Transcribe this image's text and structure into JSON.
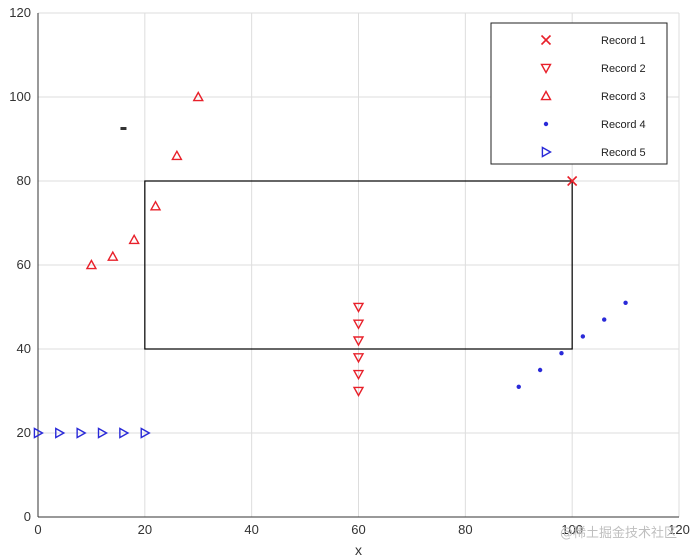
{
  "chart_data": {
    "type": "scatter",
    "title": "",
    "xlabel": "x",
    "ylabel": "",
    "xlim": [
      0,
      120
    ],
    "ylim": [
      0,
      120
    ],
    "xticks": [
      0,
      20,
      40,
      60,
      80,
      100,
      120
    ],
    "yticks": [
      0,
      20,
      40,
      60,
      80,
      100,
      120
    ],
    "grid": true,
    "legend_position": "top-right",
    "series": [
      {
        "name": "Record 1",
        "marker": "x",
        "color": "#e8202a",
        "x": [
          100
        ],
        "y": [
          80
        ]
      },
      {
        "name": "Record 2",
        "marker": "triangle-down",
        "color": "#e8202a",
        "x": [
          60,
          60,
          60,
          60,
          60,
          60
        ],
        "y": [
          30,
          34,
          38,
          42,
          46,
          50
        ]
      },
      {
        "name": "Record 3",
        "marker": "triangle-up",
        "color": "#e8202a",
        "x": [
          10,
          14,
          18,
          22,
          26,
          30
        ],
        "y": [
          60,
          62,
          66,
          74,
          86,
          100
        ]
      },
      {
        "name": "Record 4",
        "marker": "dot",
        "color": "#2a2ad8",
        "x": [
          90,
          94,
          98,
          102,
          106,
          110
        ],
        "y": [
          31,
          35,
          39,
          43,
          47,
          51
        ]
      },
      {
        "name": "Record 5",
        "marker": "triangle-right",
        "color": "#2a2ad8",
        "x": [
          0,
          4,
          8,
          12,
          16,
          20
        ],
        "y": [
          20,
          20,
          20,
          20,
          20,
          20
        ]
      }
    ],
    "annotations": {
      "rectangle": {
        "x": [
          20,
          100
        ],
        "y": [
          40,
          80
        ],
        "color": "#000000"
      },
      "stray_marker": {
        "x": 16,
        "y": 92.5,
        "color": "#333333"
      }
    }
  },
  "watermark": "@稀土掘金技术社区"
}
